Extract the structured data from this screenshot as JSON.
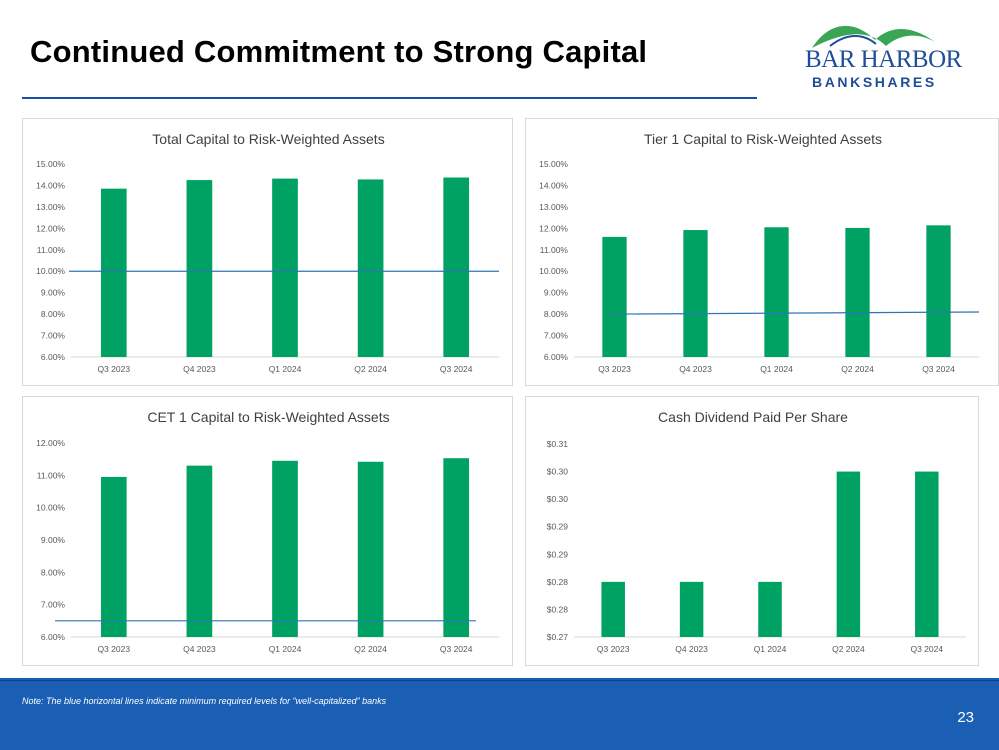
{
  "slide": {
    "title": "Continued Commitment to Strong Capital",
    "note": "Note:  The blue horizontal lines indicate minimum required levels for “well-capitalized” banks",
    "page_number": "23"
  },
  "logo": {
    "line1": "BAR HARBOR",
    "line2": "BANKSHARES"
  },
  "colors": {
    "bar": "#00a264",
    "threshold": "#2e75b6",
    "accent": "#1a5fb4"
  },
  "chart_data": [
    {
      "type": "bar",
      "title": "Total Capital to Risk-Weighted Assets",
      "categories": [
        "Q3 2023",
        "Q4 2023",
        "Q1 2024",
        "Q2 2024",
        "Q3 2024"
      ],
      "values": [
        13.85,
        14.25,
        14.32,
        14.28,
        14.37
      ],
      "ylim": [
        6,
        15
      ],
      "yticks": [
        "6.00%",
        "7.00%",
        "8.00%",
        "9.00%",
        "10.00%",
        "11.00%",
        "12.00%",
        "13.00%",
        "14.00%",
        "15.00%"
      ],
      "threshold": 10.0,
      "threshold_end": 10.0,
      "xlabel": "",
      "ylabel": ""
    },
    {
      "type": "bar",
      "title": "Tier 1 Capital to Risk-Weighted Assets",
      "categories": [
        "Q3 2023",
        "Q4 2023",
        "Q1 2024",
        "Q2 2024",
        "Q3 2024"
      ],
      "values": [
        11.6,
        11.92,
        12.05,
        12.02,
        12.14
      ],
      "ylim": [
        6,
        15
      ],
      "yticks": [
        "6.00%",
        "7.00%",
        "8.00%",
        "9.00%",
        "10.00%",
        "11.00%",
        "12.00%",
        "13.00%",
        "14.00%",
        "15.00%"
      ],
      "threshold": 8.0,
      "threshold_end": 8.1,
      "xlabel": "",
      "ylabel": ""
    },
    {
      "type": "bar",
      "title": "CET 1 Capital to Risk-Weighted Assets",
      "categories": [
        "Q3 2023",
        "Q4 2023",
        "Q1 2024",
        "Q2 2024",
        "Q3 2024"
      ],
      "values": [
        10.95,
        11.3,
        11.45,
        11.42,
        11.53
      ],
      "ylim": [
        6,
        12
      ],
      "yticks": [
        "6.00%",
        "7.00%",
        "8.00%",
        "9.00%",
        "10.00%",
        "11.00%",
        "12.00%"
      ],
      "threshold": 6.5,
      "threshold_end": 6.5,
      "xlabel": "",
      "ylabel": ""
    },
    {
      "type": "bar",
      "title": "Cash Dividend Paid Per Share",
      "categories": [
        "Q3 2023",
        "Q4 2023",
        "Q1 2024",
        "Q2 2024",
        "Q3 2024"
      ],
      "values": [
        0.28,
        0.28,
        0.28,
        0.3,
        0.3
      ],
      "ylim": [
        0.27,
        0.305
      ],
      "yticks": [
        "$0.27",
        "$0.28",
        "$0.28",
        "$0.29",
        "$0.29",
        "$0.30",
        "$0.30",
        "$0.31"
      ],
      "threshold": null,
      "threshold_end": null,
      "xlabel": "",
      "ylabel": ""
    }
  ]
}
